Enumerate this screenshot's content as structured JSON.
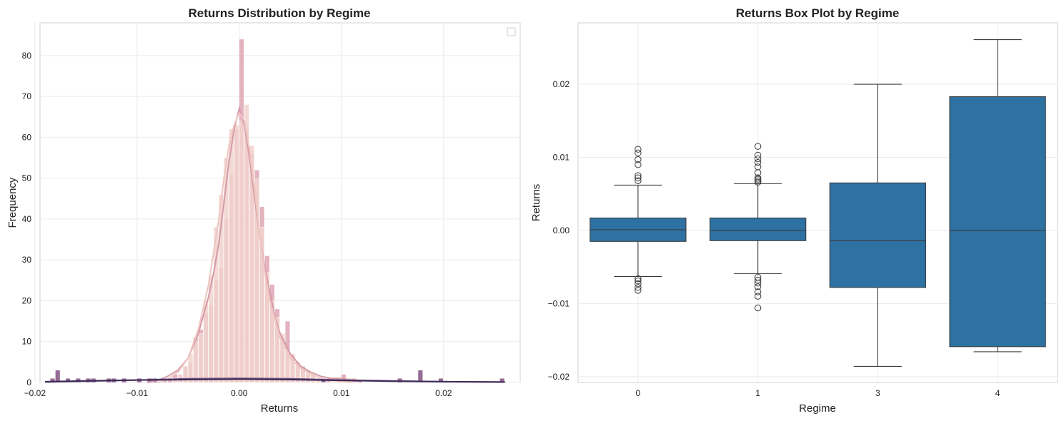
{
  "chart_data": [
    {
      "type": "histogram",
      "title": "Returns Distribution by Regime",
      "xlabel": "Returns",
      "ylabel": "Frequency",
      "xlim": [
        -0.0195,
        0.0275
      ],
      "ylim": [
        0,
        88
      ],
      "xticks": [
        -0.02,
        -0.01,
        0.0,
        0.01,
        0.02
      ],
      "xtick_labels": [
        "−0.02",
        "−0.01",
        "0.00",
        "0.01",
        "0.02"
      ],
      "yticks": [
        0,
        10,
        20,
        30,
        40,
        50,
        60,
        70,
        80
      ],
      "ytick_labels": [
        "0",
        "10",
        "20",
        "30",
        "40",
        "50",
        "60",
        "70",
        "80"
      ],
      "grid": true,
      "legend": "upper-right (empty)",
      "bin_width": 0.0005,
      "series": [
        {
          "color": "#d99aab",
          "opacity": 0.75,
          "bins": [
            [
              -0.0075,
              1
            ],
            [
              -0.007,
              1
            ],
            [
              -0.0065,
              2
            ],
            [
              -0.006,
              2
            ],
            [
              -0.0055,
              4
            ],
            [
              -0.005,
              5
            ],
            [
              -0.0045,
              11
            ],
            [
              -0.004,
              13
            ],
            [
              -0.0035,
              17
            ],
            [
              -0.003,
              19
            ],
            [
              -0.0025,
              25
            ],
            [
              -0.002,
              28
            ],
            [
              -0.0015,
              40
            ],
            [
              -0.001,
              51
            ],
            [
              -0.0005,
              62
            ],
            [
              0.0,
              84
            ],
            [
              0.0005,
              62
            ],
            [
              0.001,
              56
            ],
            [
              0.0015,
              52
            ],
            [
              0.002,
              43
            ],
            [
              0.0025,
              31
            ],
            [
              0.003,
              24
            ],
            [
              0.0035,
              18
            ],
            [
              0.004,
              11
            ],
            [
              0.0045,
              15
            ],
            [
              0.005,
              7
            ],
            [
              0.0055,
              5
            ],
            [
              0.006,
              4
            ],
            [
              0.0065,
              2
            ],
            [
              0.007,
              2
            ],
            [
              0.0075,
              1
            ],
            [
              0.008,
              1
            ],
            [
              0.0085,
              1
            ],
            [
              0.0095,
              1
            ],
            [
              0.01,
              2
            ],
            [
              0.011,
              1
            ]
          ]
        },
        {
          "color": "#f1d2cc",
          "opacity": 0.85,
          "bins": [
            [
              -0.0065,
              1
            ],
            [
              -0.006,
              2
            ],
            [
              -0.0055,
              4
            ],
            [
              -0.005,
              7
            ],
            [
              -0.0045,
              10
            ],
            [
              -0.004,
              12
            ],
            [
              -0.0035,
              20
            ],
            [
              -0.003,
              26
            ],
            [
              -0.0025,
              38
            ],
            [
              -0.002,
              46
            ],
            [
              -0.0015,
              55
            ],
            [
              -0.001,
              62
            ],
            [
              -0.0005,
              63
            ],
            [
              0.0,
              64
            ],
            [
              0.0005,
              68
            ],
            [
              0.001,
              58
            ],
            [
              0.0015,
              50
            ],
            [
              0.002,
              38
            ],
            [
              0.0025,
              27
            ],
            [
              0.003,
              20
            ],
            [
              0.0035,
              16
            ],
            [
              0.004,
              12
            ],
            [
              0.0045,
              8
            ],
            [
              0.005,
              7
            ],
            [
              0.0055,
              5
            ],
            [
              0.006,
              4
            ],
            [
              0.0065,
              3
            ],
            [
              0.007,
              2
            ],
            [
              0.0075,
              1
            ],
            [
              0.009,
              1
            ],
            [
              0.0105,
              1
            ]
          ]
        },
        {
          "color": "#8a5b8a",
          "opacity": 0.9,
          "bins": [
            [
              -0.0185,
              1
            ],
            [
              -0.018,
              3
            ],
            [
              -0.017,
              1
            ],
            [
              -0.016,
              1
            ],
            [
              -0.015,
              1
            ],
            [
              -0.0145,
              1
            ],
            [
              -0.013,
              1
            ],
            [
              -0.0125,
              1
            ],
            [
              -0.0115,
              1
            ],
            [
              -0.01,
              1
            ],
            [
              -0.009,
              1
            ],
            [
              -0.0085,
              1
            ],
            [
              0.008,
              1
            ],
            [
              0.0155,
              1
            ],
            [
              0.0175,
              3
            ],
            [
              0.0195,
              1
            ],
            [
              0.0255,
              1
            ]
          ]
        }
      ],
      "kde": [
        {
          "color": "#d598a7",
          "points": [
            [
              -0.009,
              0
            ],
            [
              -0.008,
              0.5
            ],
            [
              -0.007,
              1.5
            ],
            [
              -0.006,
              3
            ],
            [
              -0.005,
              6
            ],
            [
              -0.004,
              12
            ],
            [
              -0.003,
              21
            ],
            [
              -0.0025,
              27
            ],
            [
              -0.002,
              34
            ],
            [
              -0.0015,
              44
            ],
            [
              -0.001,
              54
            ],
            [
              -0.0005,
              62
            ],
            [
              0.0,
              67
            ],
            [
              0.0005,
              63
            ],
            [
              0.001,
              55
            ],
            [
              0.0015,
              45
            ],
            [
              0.002,
              36
            ],
            [
              0.0025,
              28
            ],
            [
              0.003,
              22
            ],
            [
              0.0035,
              16
            ],
            [
              0.004,
              12
            ],
            [
              0.005,
              7
            ],
            [
              0.006,
              4
            ],
            [
              0.007,
              2.5
            ],
            [
              0.008,
              1.5
            ],
            [
              0.009,
              1
            ],
            [
              0.01,
              1
            ],
            [
              0.011,
              0.6
            ],
            [
              0.012,
              0.1
            ]
          ]
        },
        {
          "color": "#efc6c0",
          "points": [
            [
              -0.008,
              0
            ],
            [
              -0.007,
              0.8
            ],
            [
              -0.006,
              2.5
            ],
            [
              -0.005,
              6
            ],
            [
              -0.004,
              13
            ],
            [
              -0.003,
              24
            ],
            [
              -0.002,
              40
            ],
            [
              -0.0015,
              50
            ],
            [
              -0.001,
              58
            ],
            [
              -0.0005,
              63
            ],
            [
              0.0,
              66
            ],
            [
              0.0005,
              64
            ],
            [
              0.001,
              57
            ],
            [
              0.0015,
              47
            ],
            [
              0.002,
              36
            ],
            [
              0.0025,
              27
            ],
            [
              0.003,
              20
            ],
            [
              0.004,
              11
            ],
            [
              0.005,
              6
            ],
            [
              0.006,
              3.5
            ],
            [
              0.007,
              2
            ],
            [
              0.008,
              1
            ],
            [
              0.009,
              0.6
            ],
            [
              0.011,
              0
            ]
          ]
        },
        {
          "color": "#6c4f80",
          "points": [
            [
              -0.019,
              0.1
            ],
            [
              -0.015,
              0.3
            ],
            [
              -0.01,
              0.6
            ],
            [
              -0.005,
              0.9
            ],
            [
              0.0,
              1.0
            ],
            [
              0.005,
              0.9
            ],
            [
              0.01,
              0.6
            ],
            [
              0.015,
              0.4
            ],
            [
              0.02,
              0.2
            ],
            [
              0.026,
              0.1
            ]
          ]
        },
        {
          "color": "#3d2a55",
          "points": [
            [
              -0.019,
              0.2
            ],
            [
              -0.015,
              0.4
            ],
            [
              -0.01,
              0.6
            ],
            [
              -0.005,
              0.7
            ],
            [
              0.0,
              0.8
            ],
            [
              0.005,
              0.7
            ],
            [
              0.01,
              0.5
            ],
            [
              0.015,
              0.3
            ],
            [
              0.02,
              0.2
            ],
            [
              0.026,
              0.1
            ]
          ]
        }
      ]
    },
    {
      "type": "box",
      "title": "Returns Box Plot by Regime",
      "xlabel": "Regime",
      "ylabel": "Returns",
      "categories": [
        "0",
        "1",
        "3",
        "4"
      ],
      "ylim": [
        -0.0208,
        0.0284
      ],
      "yticks": [
        -0.02,
        -0.01,
        0.0,
        0.01,
        0.02
      ],
      "ytick_labels": [
        "−0.02",
        "−0.01",
        "0.00",
        "0.01",
        "0.02"
      ],
      "grid": true,
      "box_color": "#2e72a3",
      "line_color": "#3b3b3b",
      "boxes": [
        {
          "category": "0",
          "whisker_low": -0.0063,
          "q1": -0.0015,
          "median": 0.0001,
          "q3": 0.0017,
          "whisker_high": 0.0062,
          "outliers": [
            0.0111,
            0.0106,
            0.0097,
            0.009,
            0.0075,
            0.0072,
            0.0068,
            -0.0066,
            -0.0069,
            -0.0073,
            -0.0078,
            -0.0082
          ]
        },
        {
          "category": "1",
          "whisker_low": -0.0059,
          "q1": -0.0014,
          "median": 0.0,
          "q3": 0.0017,
          "whisker_high": 0.0064,
          "outliers": [
            0.0115,
            0.0103,
            0.0098,
            0.0093,
            0.0087,
            0.0079,
            0.0072,
            0.007,
            0.0068,
            0.0066,
            -0.0064,
            -0.0068,
            -0.0072,
            -0.0077,
            -0.0084,
            -0.009,
            -0.0106
          ]
        },
        {
          "category": "3",
          "whisker_low": -0.0186,
          "q1": -0.0078,
          "median": -0.0014,
          "q3": 0.0065,
          "whisker_high": 0.02,
          "outliers": []
        },
        {
          "category": "4",
          "whisker_low": -0.0166,
          "q1": -0.0159,
          "median": 0.0,
          "q3": 0.0183,
          "whisker_high": 0.0261,
          "outliers": []
        }
      ]
    }
  ]
}
